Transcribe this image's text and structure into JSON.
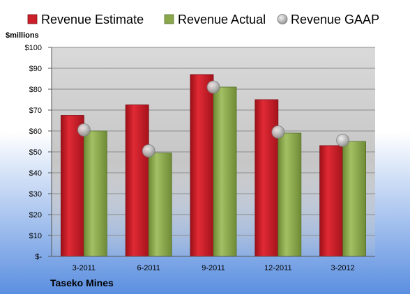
{
  "colors": {
    "estimate": "#cc1f2a",
    "actual": "#8aa84b",
    "gaap": "#c7c7c7",
    "background_top": "#ffffff",
    "background_bottom": "#5b8fe0",
    "plot_top": "#d6d6d6",
    "plot_bottom": "#c4c4c4"
  },
  "chart_data": {
    "type": "bar",
    "title": "Taseko Mines",
    "unit_label": "$millions",
    "categories": [
      "3-2011",
      "6-2011",
      "9-2011",
      "12-2011",
      "3-2012"
    ],
    "series": [
      {
        "name": "Revenue Estimate",
        "style": "bar",
        "values": [
          67.5,
          72.5,
          87,
          75,
          53
        ]
      },
      {
        "name": "Revenue Actual",
        "style": "bar",
        "values": [
          60,
          49.5,
          81,
          59,
          55
        ]
      },
      {
        "name": "Revenue GAAP",
        "style": "marker",
        "values": [
          60.5,
          50.5,
          81,
          59.5,
          55.5
        ]
      }
    ],
    "ylim": [
      0,
      100
    ],
    "yticks": [
      0,
      10,
      20,
      30,
      40,
      50,
      60,
      70,
      80,
      90,
      100
    ],
    "ytick_labels": [
      "$-",
      "$10",
      "$20",
      "$30",
      "$40",
      "$50",
      "$60",
      "$70",
      "$80",
      "$90",
      "$100"
    ],
    "grid": true,
    "legend_position": "top"
  }
}
